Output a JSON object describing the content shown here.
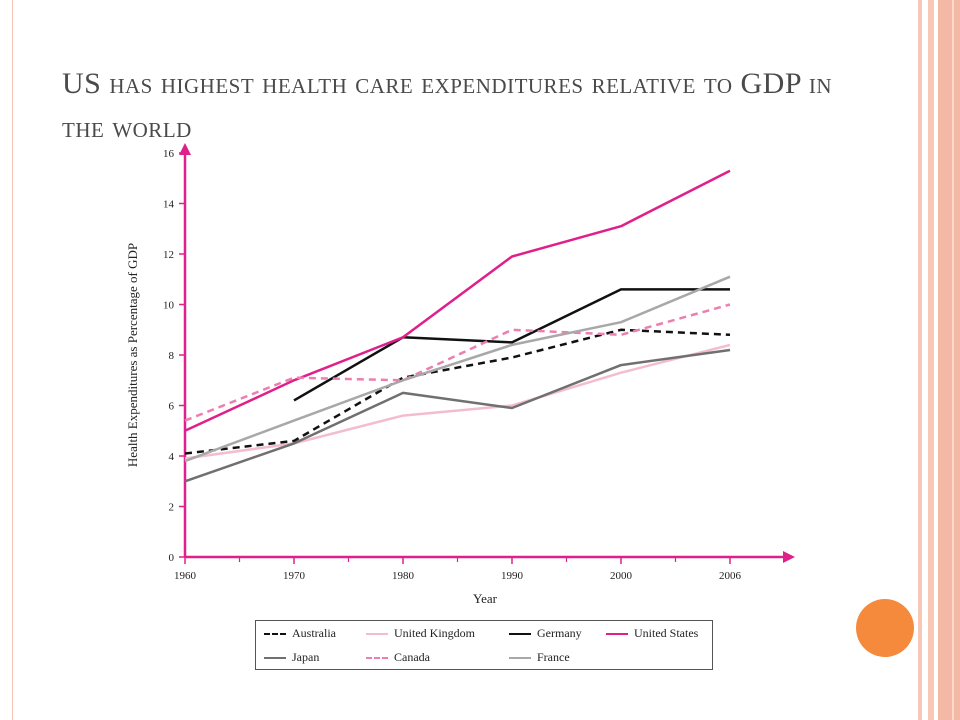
{
  "slide": {
    "title": "US has highest health care expenditures relative to GDP in the world"
  },
  "colors": {
    "axis": "#e0208a",
    "australia": "#111111",
    "united_kingdom": "#f3bcd0",
    "germany": "#111111",
    "united_states": "#e0208a",
    "japan": "#707070",
    "canada": "#ec7fb0",
    "france": "#a8a8a8",
    "accent_circle": "#f58a3c"
  },
  "chart_data": {
    "type": "line",
    "xlabel": "Year",
    "ylabel": "Health Expenditures as Percentage of GDP",
    "x": [
      "1960",
      "1970",
      "1980",
      "1990",
      "2000",
      "2006"
    ],
    "ylim": [
      0,
      16
    ],
    "yticks": [
      "0",
      "2",
      "4",
      "6",
      "8",
      "10",
      "12",
      "14",
      "16"
    ],
    "grid": false,
    "legend_position": "bottom",
    "series": [
      {
        "name": "Australia",
        "key": "australia",
        "style": "dashed",
        "values": [
          4.1,
          4.6,
          7.1,
          7.9,
          9.0,
          8.8
        ]
      },
      {
        "name": "United Kingdom",
        "key": "united_kingdom",
        "style": "solid",
        "values": [
          3.9,
          4.5,
          5.6,
          6.0,
          7.3,
          8.4
        ]
      },
      {
        "name": "Germany",
        "key": "germany",
        "style": "solid",
        "values": [
          null,
          6.2,
          8.7,
          8.5,
          10.6,
          10.6
        ]
      },
      {
        "name": "United States",
        "key": "united_states",
        "style": "solid",
        "values": [
          5.0,
          7.0,
          8.7,
          11.9,
          13.1,
          15.3
        ]
      },
      {
        "name": "Japan",
        "key": "japan",
        "style": "solid",
        "values": [
          3.0,
          4.5,
          6.5,
          5.9,
          7.6,
          8.2
        ]
      },
      {
        "name": "Canada",
        "key": "canada",
        "style": "dashed",
        "values": [
          5.4,
          7.1,
          7.0,
          9.0,
          8.8,
          10.0
        ]
      },
      {
        "name": "France",
        "key": "france",
        "style": "solid",
        "values": [
          3.8,
          5.4,
          7.0,
          8.4,
          9.3,
          11.1
        ]
      }
    ]
  }
}
